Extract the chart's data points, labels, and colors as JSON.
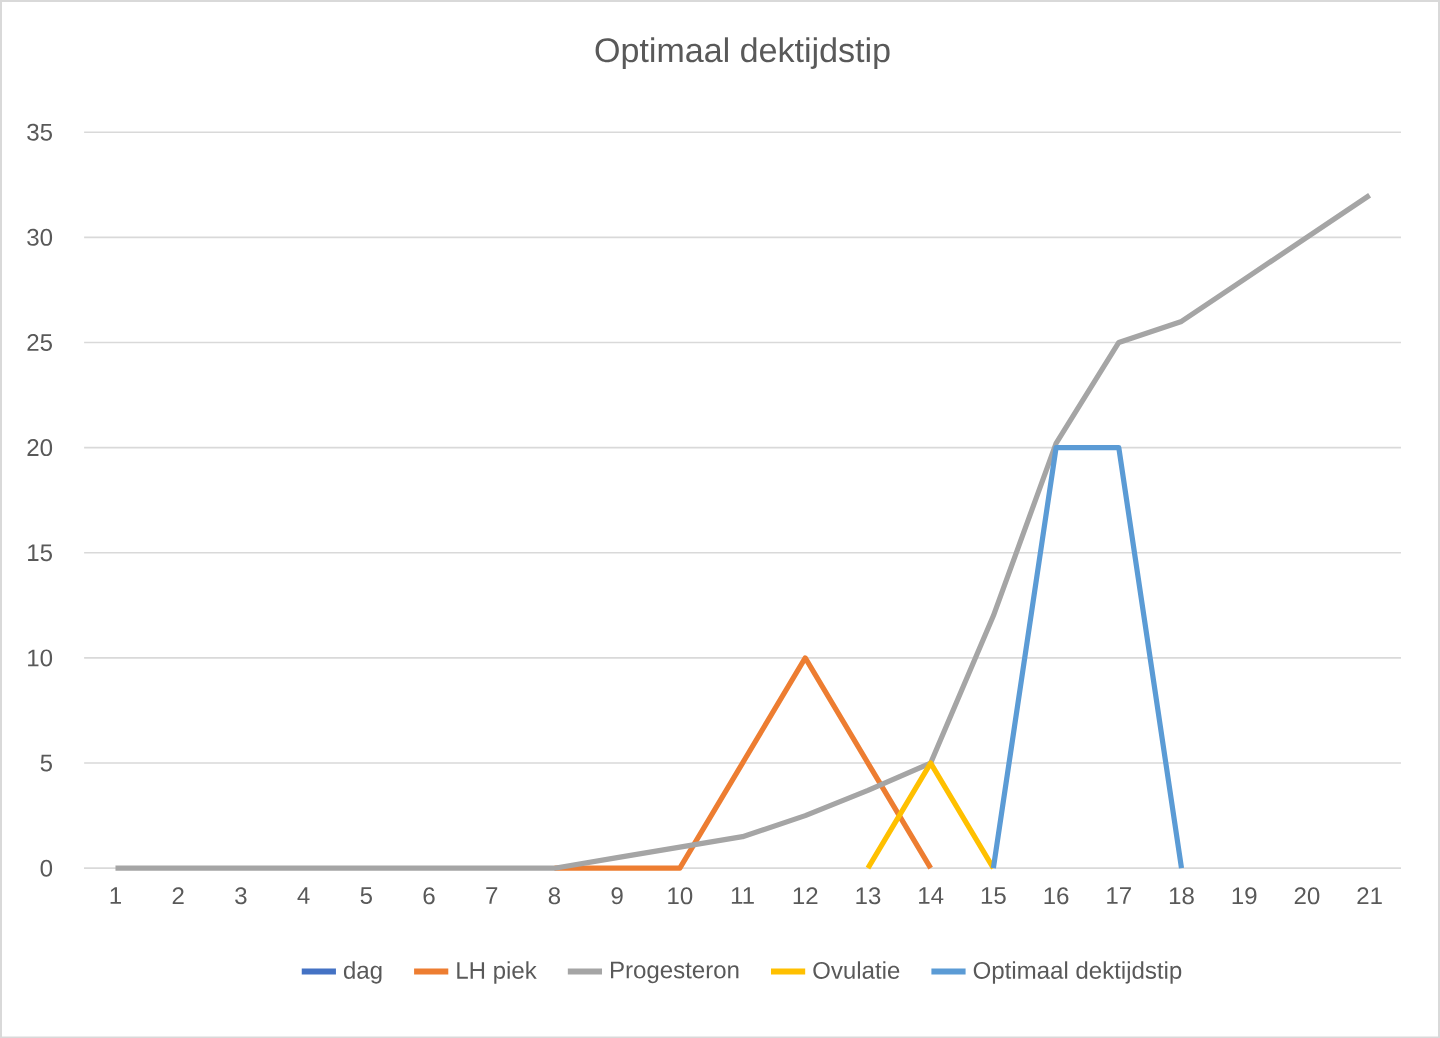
{
  "chart_data": {
    "type": "line",
    "title": "Optimaal dektijdstip",
    "categories": [
      "1",
      "2",
      "3",
      "4",
      "5",
      "6",
      "7",
      "8",
      "9",
      "10",
      "11",
      "12",
      "13",
      "14",
      "15",
      "16",
      "17",
      "18",
      "19",
      "20",
      "21"
    ],
    "series": [
      {
        "name": "dag",
        "color": "#4472c4",
        "values": [
          null,
          null,
          null,
          null,
          null,
          null,
          null,
          null,
          null,
          null,
          null,
          null,
          null,
          null,
          null,
          null,
          null,
          null,
          null,
          null,
          null
        ]
      },
      {
        "name": "LH piek",
        "color": "#ed7d31",
        "values": [
          null,
          null,
          null,
          null,
          null,
          null,
          null,
          0,
          0,
          0,
          5,
          10,
          5,
          0,
          null,
          null,
          null,
          null,
          null,
          null,
          null
        ]
      },
      {
        "name": "Progesteron",
        "color": "#a5a5a5",
        "values": [
          0,
          0,
          0,
          0,
          0,
          0,
          0,
          0,
          0.5,
          1,
          1.5,
          2.5,
          3.7,
          5,
          12,
          20.2,
          25,
          26,
          28,
          30,
          32
        ]
      },
      {
        "name": "Ovulatie",
        "color": "#ffc000",
        "values": [
          null,
          null,
          null,
          null,
          null,
          null,
          null,
          null,
          null,
          null,
          null,
          null,
          0,
          5,
          0,
          null,
          null,
          null,
          null,
          null,
          null
        ]
      },
      {
        "name": "Optimaal dektijdstip",
        "color": "#5b9bd5",
        "values": [
          null,
          null,
          null,
          null,
          null,
          null,
          null,
          null,
          null,
          null,
          null,
          null,
          null,
          null,
          0,
          20,
          20,
          0,
          null,
          null,
          null
        ]
      }
    ],
    "ylim": [
      0,
      35
    ],
    "yticks": [
      0,
      5,
      10,
      15,
      20,
      25,
      30,
      35
    ],
    "grid": "y",
    "legend": "bottom"
  }
}
